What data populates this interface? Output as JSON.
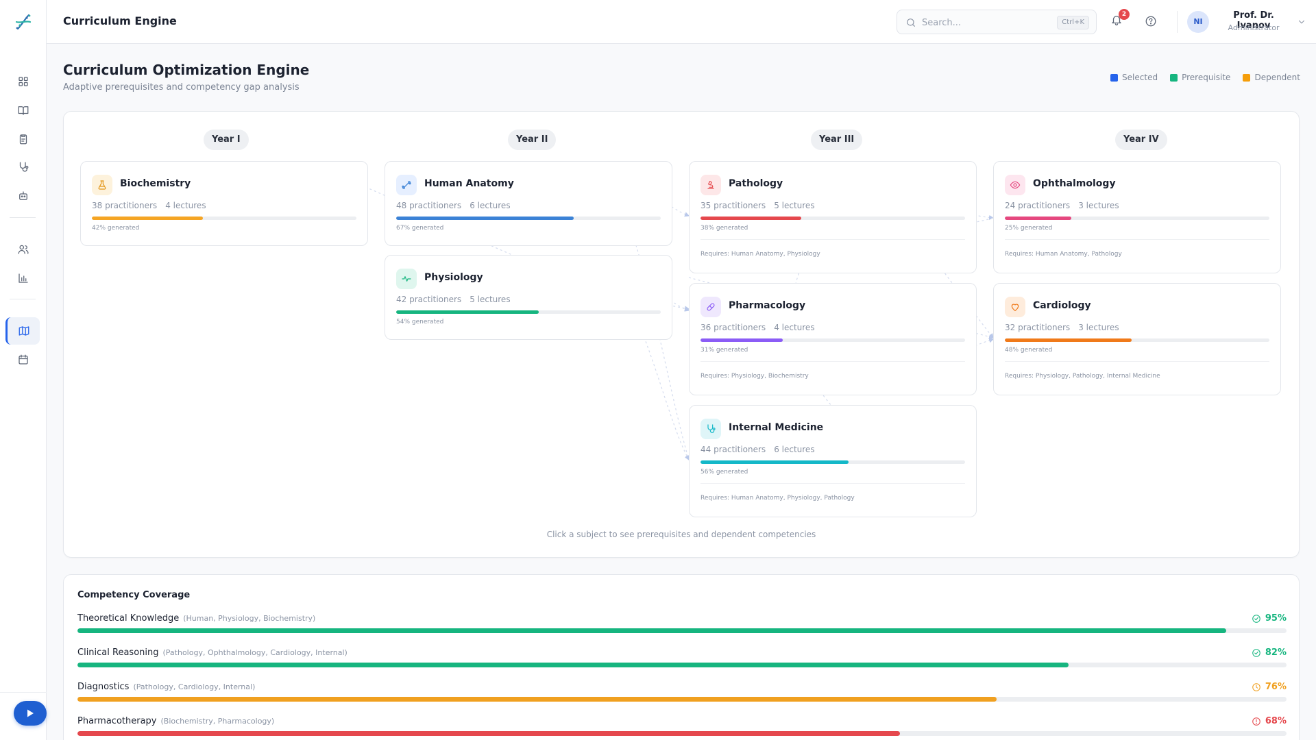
{
  "app": {
    "title": "Curriculum Engine"
  },
  "search": {
    "placeholder": "Search...",
    "shortcut": "Ctrl+K"
  },
  "notifications": {
    "count": "2"
  },
  "user": {
    "initials": "NI",
    "name": "Prof. Dr. Ivanov",
    "role": "Administrator"
  },
  "page": {
    "title": "Curriculum Optimization Engine",
    "subtitle": "Adaptive prerequisites and competency gap analysis"
  },
  "legend": [
    {
      "label": "Selected",
      "color": "#2563eb"
    },
    {
      "label": "Prerequisite",
      "color": "#16b57f"
    },
    {
      "label": "Dependent",
      "color": "#f59e0b"
    }
  ],
  "years": [
    "Year I",
    "Year II",
    "Year III",
    "Year IV"
  ],
  "subjects": [
    {
      "name": "Biochemistry",
      "practitioners": "38 practitioners",
      "lectures": "4 lectures",
      "generated": "42% generated",
      "progress": 0.42,
      "color": "#f5a524",
      "icon": "flask-icon",
      "requires": ""
    },
    {
      "name": "Human Anatomy",
      "practitioners": "48 practitioners",
      "lectures": "6 lectures",
      "generated": "67% generated",
      "progress": 0.67,
      "color": "#3b82d6",
      "icon": "bone-icon",
      "requires": ""
    },
    {
      "name": "Physiology",
      "practitioners": "42 practitioners",
      "lectures": "5 lectures",
      "generated": "54% generated",
      "progress": 0.54,
      "color": "#16b57f",
      "icon": "pulse-icon",
      "requires": ""
    },
    {
      "name": "Pathology",
      "practitioners": "35 practitioners",
      "lectures": "5 lectures",
      "generated": "38% generated",
      "progress": 0.38,
      "color": "#e5484d",
      "icon": "microscope-icon",
      "requires": "Requires: Human Anatomy, Physiology"
    },
    {
      "name": "Pharmacology",
      "practitioners": "36 practitioners",
      "lectures": "4 lectures",
      "generated": "31% generated",
      "progress": 0.31,
      "color": "#8b5cf6",
      "icon": "pill-icon",
      "requires": "Requires: Physiology, Biochemistry"
    },
    {
      "name": "Internal Medicine",
      "practitioners": "44 practitioners",
      "lectures": "6 lectures",
      "generated": "56% generated",
      "progress": 0.56,
      "color": "#14b8c8",
      "icon": "stethoscope-icon",
      "requires": "Requires: Human Anatomy, Physiology, Pathology"
    },
    {
      "name": "Ophthalmology",
      "practitioners": "24 practitioners",
      "lectures": "3 lectures",
      "generated": "25% generated",
      "progress": 0.25,
      "color": "#e5487f",
      "icon": "eye-icon",
      "requires": "Requires: Human Anatomy, Pathology"
    },
    {
      "name": "Cardiology",
      "practitioners": "32 practitioners",
      "lectures": "3 lectures",
      "generated": "48% generated",
      "progress": 0.48,
      "color": "#f07a1a",
      "icon": "heart-icon",
      "requires": "Requires: Physiology, Pathology, Internal Medicine"
    }
  ],
  "hint": "Click a subject to see prerequisites and dependent competencies",
  "coverage": {
    "title": "Competency Coverage",
    "items": [
      {
        "label": "Theoretical Knowledge",
        "sub": "(Human, Physiology, Biochemistry)",
        "percent": "95%",
        "value": 0.95,
        "color": "#16b57f",
        "status": "check-circle-icon"
      },
      {
        "label": "Clinical Reasoning",
        "sub": "(Pathology, Ophthalmology, Cardiology, Internal)",
        "percent": "82%",
        "value": 0.82,
        "color": "#16b57f",
        "status": "check-circle-icon"
      },
      {
        "label": "Diagnostics",
        "sub": "(Pathology, Cardiology, Internal)",
        "percent": "76%",
        "value": 0.76,
        "color": "#f0a020",
        "status": "clock-icon"
      },
      {
        "label": "Pharmacotherapy",
        "sub": "(Biochemistry, Pharmacology)",
        "percent": "68%",
        "value": 0.68,
        "color": "#e5484d",
        "status": "alert-circle-icon"
      }
    ]
  }
}
